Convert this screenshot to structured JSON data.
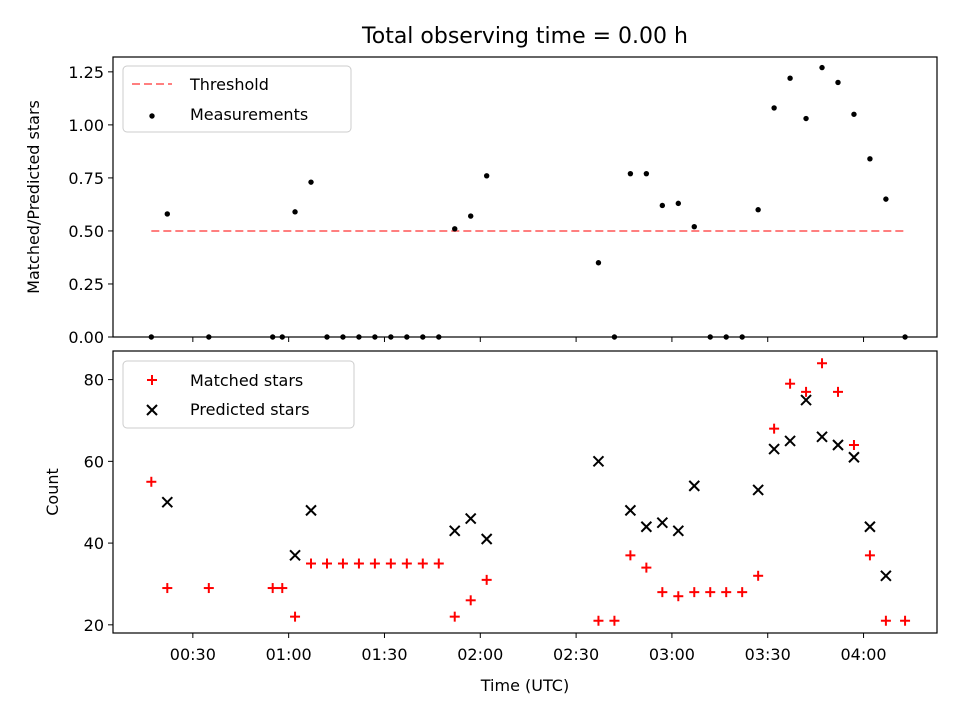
{
  "title": "Total observing time = 0.00 h",
  "chart_data": [
    {
      "type": "scatter",
      "ylabel": "Matched/Predicted stars",
      "ylim": [
        0,
        1.32
      ],
      "yticks": [
        "0.00",
        "0.25",
        "0.50",
        "0.75",
        "1.00",
        "1.25"
      ],
      "legend_position": "top-left",
      "threshold": {
        "name": "Threshold",
        "value": 0.5,
        "x_range": [
          "00:17",
          "04:13"
        ],
        "color": "#ff7f7f"
      },
      "series": [
        {
          "name": "Measurements",
          "color": "#000000",
          "marker": "dot",
          "x": [
            "00:17",
            "00:22",
            "00:35",
            "00:55",
            "00:58",
            "01:02",
            "01:07",
            "01:12",
            "01:17",
            "01:22",
            "01:27",
            "01:32",
            "01:37",
            "01:42",
            "01:47",
            "01:52",
            "01:57",
            "02:02",
            "02:37",
            "02:42",
            "02:47",
            "02:52",
            "02:57",
            "03:02",
            "03:07",
            "03:12",
            "03:17",
            "03:22",
            "03:27",
            "03:32",
            "03:37",
            "03:42",
            "03:47",
            "03:52",
            "03:57",
            "04:02",
            "04:07",
            "04:13"
          ],
          "y": [
            0,
            0.58,
            0,
            0,
            0,
            0.59,
            0.73,
            0,
            0,
            0,
            0,
            0,
            0,
            0,
            0,
            0.51,
            0.57,
            0.76,
            0.35,
            0,
            0.77,
            0.77,
            0.62,
            0.63,
            0.52,
            0,
            0,
            0,
            0.6,
            1.08,
            1.22,
            1.03,
            1.27,
            1.2,
            1.05,
            0.84,
            0.65,
            0
          ]
        }
      ]
    },
    {
      "type": "scatter",
      "xlabel": "Time (UTC)",
      "ylabel": "Count",
      "ylim": [
        18,
        87
      ],
      "yticks": [
        "20",
        "40",
        "60",
        "80"
      ],
      "xticks": [
        "00:30",
        "01:00",
        "01:30",
        "02:00",
        "02:30",
        "03:00",
        "03:30",
        "04:00"
      ],
      "xlim": [
        "00:05",
        "04:23"
      ],
      "legend_position": "top-left",
      "series": [
        {
          "name": "Matched stars",
          "color": "#ff0000",
          "marker": "plus",
          "x": [
            "00:17",
            "00:22",
            "00:35",
            "00:55",
            "00:58",
            "01:02",
            "01:07",
            "01:12",
            "01:17",
            "01:22",
            "01:27",
            "01:32",
            "01:37",
            "01:42",
            "01:47",
            "01:52",
            "01:57",
            "02:02",
            "02:37",
            "02:42",
            "02:47",
            "02:52",
            "02:57",
            "03:02",
            "03:07",
            "03:12",
            "03:17",
            "03:22",
            "03:27",
            "03:32",
            "03:37",
            "03:42",
            "03:47",
            "03:52",
            "03:57",
            "04:02",
            "04:07",
            "04:13"
          ],
          "y": [
            55,
            29,
            29,
            29,
            29,
            22,
            35,
            35,
            35,
            35,
            35,
            35,
            35,
            35,
            35,
            22,
            26,
            31,
            21,
            21,
            37,
            34,
            28,
            27,
            28,
            28,
            28,
            28,
            32,
            68,
            79,
            77,
            84,
            77,
            64,
            37,
            21,
            21
          ]
        },
        {
          "name": "Predicted stars",
          "color": "#000000",
          "marker": "x",
          "x": [
            "00:22",
            "01:02",
            "01:07",
            "01:52",
            "01:57",
            "02:02",
            "02:37",
            "02:47",
            "02:52",
            "02:57",
            "03:02",
            "03:07",
            "03:27",
            "03:32",
            "03:37",
            "03:42",
            "03:47",
            "03:52",
            "03:57",
            "04:02",
            "04:07"
          ],
          "y": [
            50,
            37,
            48,
            43,
            46,
            41,
            60,
            48,
            44,
            45,
            43,
            54,
            53,
            63,
            65,
            75,
            66,
            64,
            61,
            44,
            32
          ]
        }
      ]
    }
  ]
}
